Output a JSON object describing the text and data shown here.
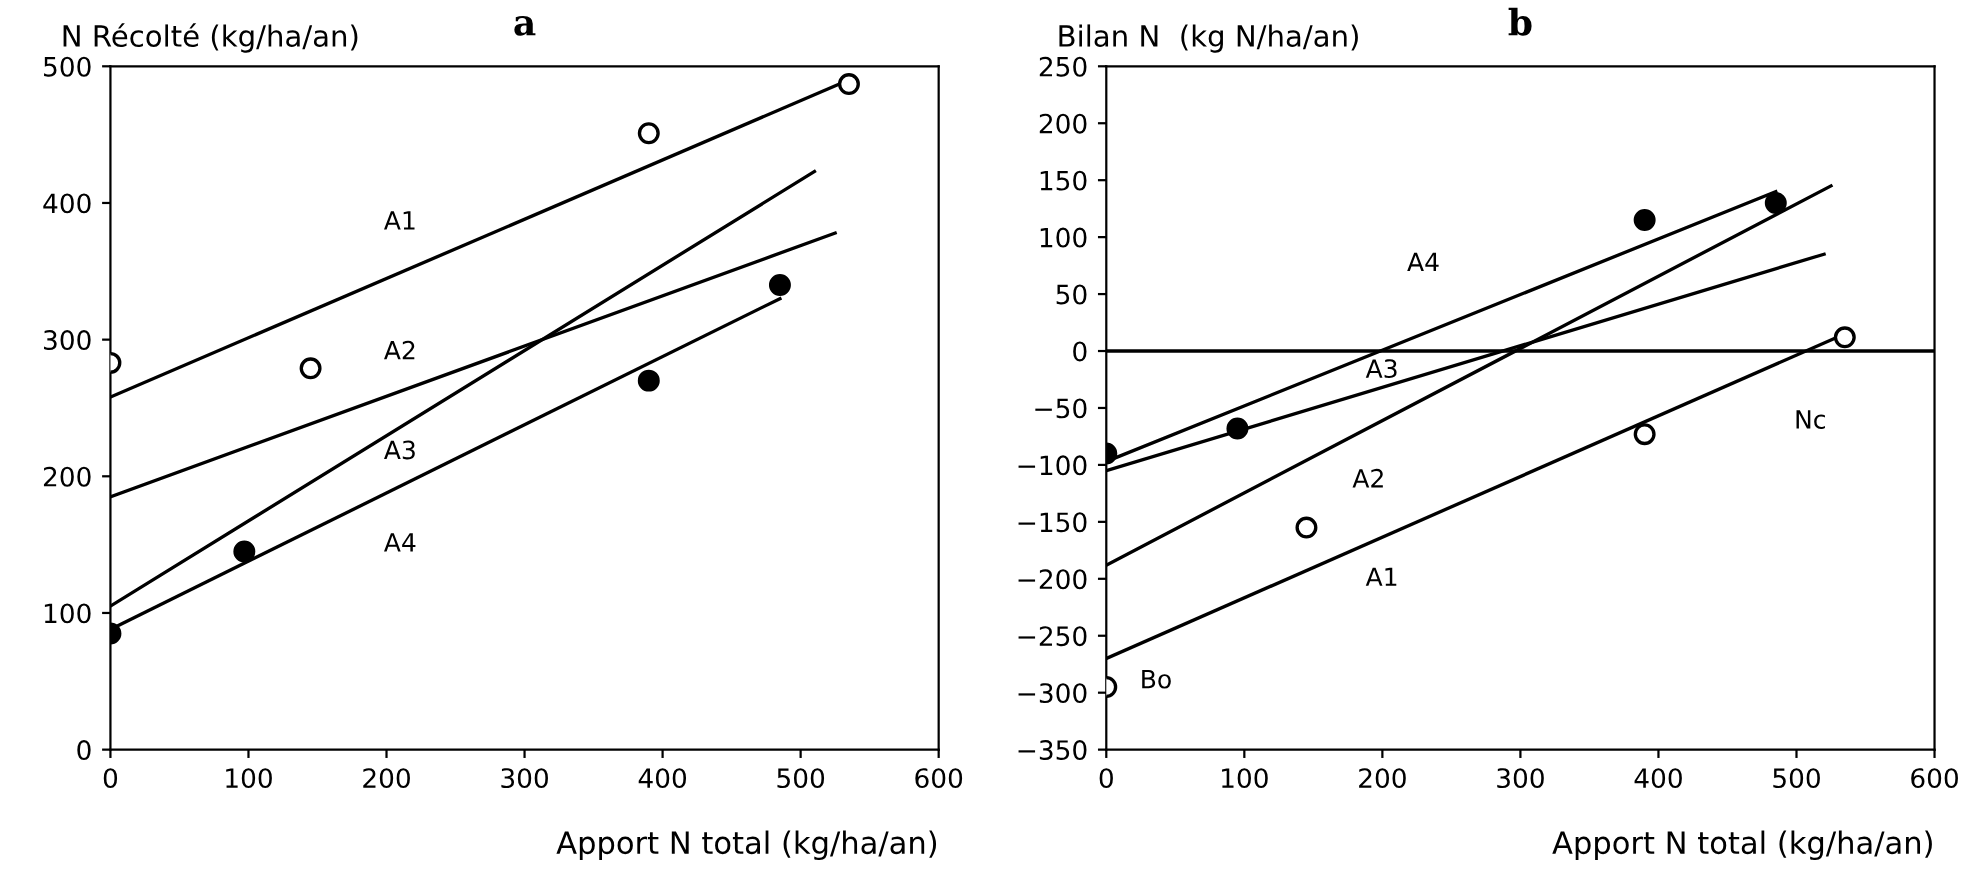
{
  "chart_data": [
    {
      "type": "line",
      "title": "a",
      "ylabel": "N Récolté (kg/ha/an)",
      "xlabel": "Apport N total (kg/ha/an)",
      "xlim": [
        0,
        600
      ],
      "xticks": [
        0,
        100,
        200,
        300,
        400,
        500,
        600
      ],
      "ylim": [
        0,
        500
      ],
      "yticks": [
        0,
        100,
        200,
        300,
        400,
        500
      ],
      "grid": false,
      "legend": false,
      "series": [
        {
          "type": "scatter",
          "marker": "circle",
          "color": "#ffffff",
          "x": [
            0,
            145,
            390,
            535
          ],
          "values": [
            283,
            279,
            451,
            487
          ]
        },
        {
          "type": "scatter",
          "marker": "circle",
          "color": "#000000",
          "x": [
            0,
            97,
            390,
            485
          ],
          "values": [
            85,
            145,
            270,
            340
          ]
        },
        {
          "name": "A1",
          "color": "#000000",
          "x": [
            0,
            535
          ],
          "values": [
            258,
            490
          ]
        },
        {
          "name": "A2",
          "color": "#000000",
          "x": [
            0,
            525
          ],
          "values": [
            185,
            378
          ]
        },
        {
          "name": "A3",
          "color": "#000000",
          "x": [
            0,
            510
          ],
          "values": [
            105,
            423
          ]
        },
        {
          "name": "A4",
          "color": "#000000",
          "x": [
            0,
            485
          ],
          "values": [
            88,
            330
          ]
        }
      ]
    },
    {
      "type": "line",
      "title": "b",
      "ylabel": "Bilan N  (kg N/ha/an)",
      "xlabel": "Apport N total (kg/ha/an)",
      "xlim": [
        0,
        600
      ],
      "xticks": [
        0,
        100,
        200,
        300,
        400,
        500,
        600
      ],
      "ylim": [
        -350,
        250
      ],
      "yticks": [
        -350,
        -300,
        -250,
        -200,
        -150,
        -100,
        -50,
        0,
        50,
        100,
        150,
        200,
        250
      ],
      "grid": false,
      "legend": false,
      "series": [
        {
          "type": "scatter",
          "marker": "circle",
          "color": "#000000",
          "x": [
            0,
            95,
            390,
            485
          ],
          "values": [
            -90,
            -68,
            115,
            130
          ]
        },
        {
          "type": "scatter",
          "marker": "circle",
          "color": "#ffffff",
          "x": [
            0,
            145,
            390,
            535
          ],
          "values": [
            -295,
            -155,
            -73,
            12
          ]
        },
        {
          "name": "A4",
          "color": "#000000",
          "x": [
            0,
            485
          ],
          "values": [
            -97,
            140
          ]
        },
        {
          "name": "A3",
          "color": "#000000",
          "x": [
            0,
            520
          ],
          "values": [
            -105,
            85
          ]
        },
        {
          "name": "A2",
          "color": "#000000",
          "x": [
            0,
            525
          ],
          "values": [
            -188,
            145
          ]
        },
        {
          "name": "A1",
          "color": "#000000",
          "x": [
            0,
            535
          ],
          "values": [
            -270,
            15
          ]
        }
      ],
      "ref_lines": [
        {
          "axis": "y",
          "value": 0,
          "color": "#000000"
        }
      ],
      "annotations": [
        "Nc",
        "Bo"
      ]
    }
  ]
}
